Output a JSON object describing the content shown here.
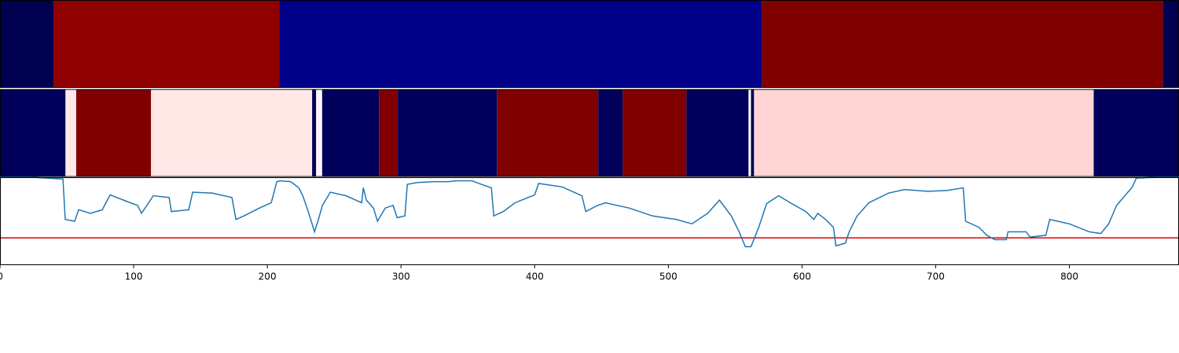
{
  "chart_data": [
    {
      "type": "band",
      "xlim": [
        0,
        882
      ],
      "segments": [
        {
          "start": 0,
          "end": 40,
          "color": "#000050"
        },
        {
          "start": 40,
          "end": 209,
          "color": "#900000"
        },
        {
          "start": 209,
          "end": 570,
          "color": "#000088"
        },
        {
          "start": 570,
          "end": 870,
          "color": "#800000"
        },
        {
          "start": 870,
          "end": 882,
          "color": "#000050"
        }
      ]
    },
    {
      "type": "band",
      "xlim": [
        0,
        882
      ],
      "segments": [
        {
          "start": 0,
          "end": 49,
          "color": "#00005a"
        },
        {
          "start": 49,
          "end": 57,
          "color": "#ffe8e8"
        },
        {
          "start": 57,
          "end": 113,
          "color": "#800000"
        },
        {
          "start": 113,
          "end": 233.5,
          "color": "#ffe8e6"
        },
        {
          "start": 233.5,
          "end": 236.5,
          "color": "#00005a"
        },
        {
          "start": 236.5,
          "end": 241,
          "color": "#fff4f4"
        },
        {
          "start": 241,
          "end": 283.5,
          "color": "#00005a"
        },
        {
          "start": 283.5,
          "end": 297.6,
          "color": "#800000"
        },
        {
          "start": 297.6,
          "end": 371.8,
          "color": "#00005a"
        },
        {
          "start": 371.8,
          "end": 447.6,
          "color": "#800000"
        },
        {
          "start": 447.6,
          "end": 465.9,
          "color": "#00005a"
        },
        {
          "start": 465.9,
          "end": 513.5,
          "color": "#800000"
        },
        {
          "start": 513.5,
          "end": 560,
          "color": "#00005a"
        },
        {
          "start": 560,
          "end": 561.8,
          "color": "#ffffff"
        },
        {
          "start": 561.8,
          "end": 564.1,
          "color": "#00005a"
        },
        {
          "start": 564.1,
          "end": 818.2,
          "color": "#ffd4d4"
        },
        {
          "start": 818.2,
          "end": 882,
          "color": "#00005a"
        }
      ]
    },
    {
      "type": "line",
      "xlim": [
        0,
        882
      ],
      "ylim": [
        0,
        1
      ],
      "xticks": [
        0,
        100,
        200,
        300,
        400,
        500,
        600,
        700,
        800
      ],
      "hline": {
        "value": 0.31,
        "color": "#e00000"
      },
      "color": "#1f77b4",
      "x": [
        0,
        23.5,
        47.1,
        48.8,
        55.9,
        58.8,
        67.6,
        76.5,
        82.4,
        94.1,
        102.9,
        105.9,
        114.7,
        126.5,
        128.2,
        141.2,
        144.1,
        158.8,
        173.5,
        176.5,
        182.4,
        194.1,
        202.9,
        207.1,
        209.4,
        217.6,
        223.5,
        226.5,
        230.6,
        235.3,
        238.2,
        241.2,
        247.1,
        258.8,
        270.6,
        271.8,
        274.1,
        279.4,
        282.4,
        288.2,
        294.1,
        297.1,
        302.9,
        304.7,
        311.8,
        323.5,
        335.3,
        341.2,
        352.9,
        360,
        367.6,
        369.4,
        376.5,
        385.3,
        400,
        402.9,
        420.6,
        435.3,
        438.2,
        447.1,
        452.9,
        470.6,
        488.2,
        505.9,
        517.6,
        529.4,
        538.2,
        547.1,
        552.9,
        557.6,
        561.8,
        567.6,
        573.5,
        582.4,
        591.2,
        602.9,
        608.8,
        611.8,
        617.6,
        623.5,
        625.3,
        632.4,
        635.3,
        641.2,
        650,
        664.7,
        676.5,
        694.1,
        708.8,
        720.6,
        722.4,
        732.4,
        738.2,
        744.1,
        752.9,
        754.1,
        767.6,
        770.6,
        782.4,
        785.3,
        800,
        814.7,
        823.5,
        829.4,
        835.3,
        847.1,
        850,
        864.7,
        882
      ],
      "values": [
        1.0,
        1.0,
        0.98,
        0.52,
        0.5,
        0.63,
        0.59,
        0.63,
        0.8,
        0.73,
        0.68,
        0.59,
        0.79,
        0.77,
        0.61,
        0.63,
        0.83,
        0.82,
        0.77,
        0.52,
        0.56,
        0.65,
        0.71,
        0.95,
        0.96,
        0.95,
        0.88,
        0.79,
        0.61,
        0.38,
        0.52,
        0.68,
        0.83,
        0.79,
        0.71,
        0.88,
        0.74,
        0.65,
        0.5,
        0.65,
        0.68,
        0.54,
        0.56,
        0.92,
        0.94,
        0.95,
        0.95,
        0.96,
        0.96,
        0.92,
        0.88,
        0.56,
        0.61,
        0.71,
        0.8,
        0.93,
        0.89,
        0.79,
        0.61,
        0.68,
        0.71,
        0.65,
        0.56,
        0.52,
        0.47,
        0.59,
        0.74,
        0.56,
        0.38,
        0.21,
        0.21,
        0.43,
        0.7,
        0.79,
        0.71,
        0.61,
        0.52,
        0.59,
        0.52,
        0.43,
        0.22,
        0.25,
        0.38,
        0.56,
        0.71,
        0.82,
        0.86,
        0.84,
        0.85,
        0.88,
        0.5,
        0.43,
        0.34,
        0.29,
        0.29,
        0.38,
        0.38,
        0.32,
        0.34,
        0.52,
        0.47,
        0.38,
        0.36,
        0.47,
        0.68,
        0.89,
        0.99,
        1.0,
        1.0
      ]
    }
  ]
}
